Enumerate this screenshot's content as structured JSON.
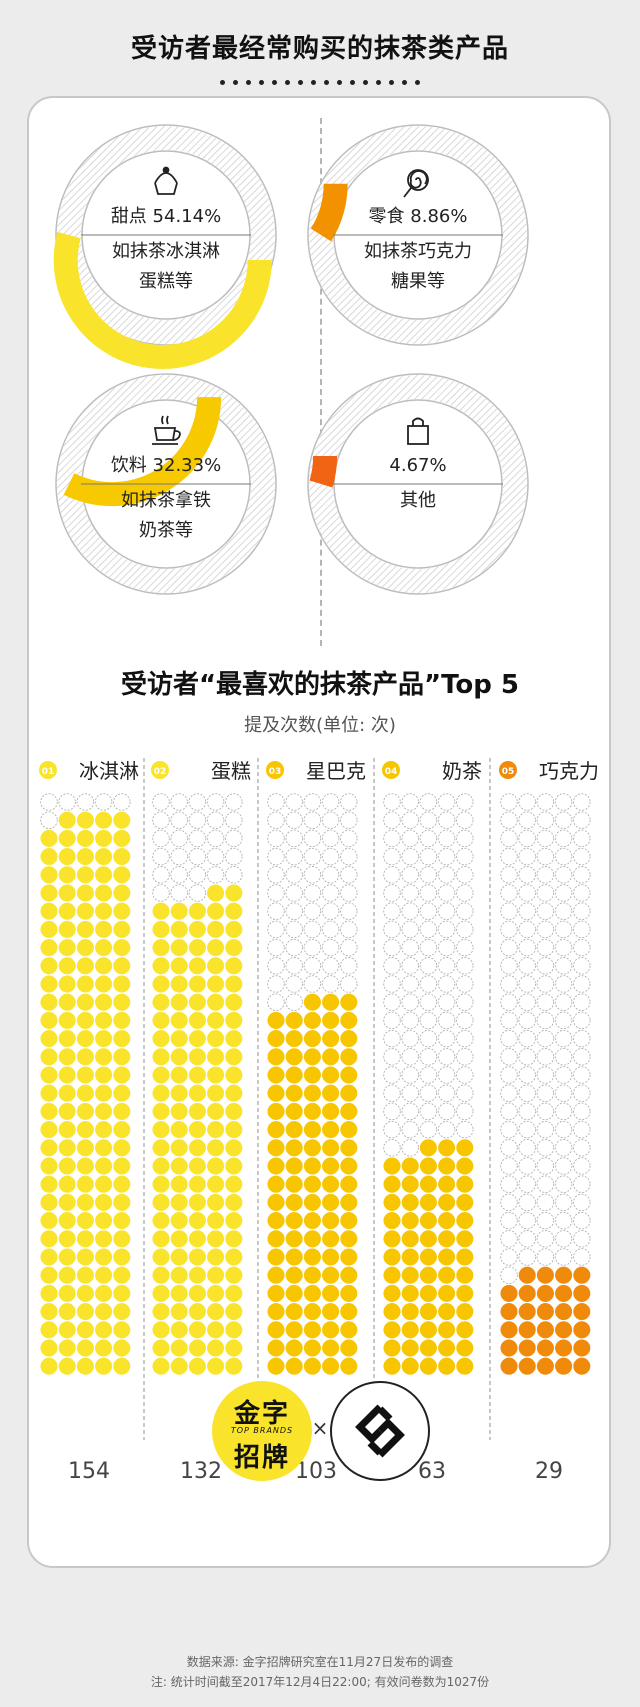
{
  "header": {
    "title": "受访者最经常购买的抹茶类产品"
  },
  "colors": {
    "yellow": "#f9e42b",
    "gold": "#f7c600",
    "amber": "#f7b800",
    "orange": "#f08a0a",
    "red_orange": "#f06414",
    "empty_dot": "#ffffff"
  },
  "donuts": [
    {
      "icon": "cupcake-icon",
      "label": "甜点 54.14%",
      "desc1": "如抹茶冰淇淋",
      "desc2": "蛋糕等",
      "value": 54.14,
      "color": "#f9e42b"
    },
    {
      "icon": "lollipop-icon",
      "label": "零食 8.86%",
      "desc1": "如抹茶巧克力",
      "desc2": "糖果等",
      "value": 8.86,
      "color": "#f39200"
    },
    {
      "icon": "cup-icon",
      "label": "饮料 32.33%",
      "desc1": "如抹茶拿铁",
      "desc2": "奶茶等",
      "value": 32.33,
      "color": "#f7c900"
    },
    {
      "icon": "bag-icon",
      "label": "4.67%",
      "desc1": "其他",
      "desc2": "",
      "value": 4.67,
      "color": "#f06414"
    }
  ],
  "chart_data": {
    "type": "bar",
    "title": "受访者“最喜欢的抹茶产品”Top 5",
    "subtitle": "提及次数(单位: 次)",
    "categories": [
      "冰淇淋",
      "蛋糕",
      "星巴克",
      "奶茶",
      "巧克力"
    ],
    "ranks": [
      "01",
      "02",
      "03",
      "04",
      "05"
    ],
    "values": [
      154,
      132,
      103,
      63,
      29
    ],
    "ylim": [
      0,
      160
    ],
    "style": "dot-grid",
    "colors": [
      "#f9e42b",
      "#f9e42b",
      "#f7c600",
      "#f7c600",
      "#f08a0a"
    ]
  },
  "brand": {
    "logo_line1": "金字",
    "logo_line2": "TOP BRANDS",
    "logo_line3": "招牌",
    "times": "×"
  },
  "footer": {
    "source": "数据来源: 金字招牌研究室在11月27日发布的调查",
    "note": "注: 统计时间截至2017年12月4日22:00; 有效问卷数为1027份"
  }
}
